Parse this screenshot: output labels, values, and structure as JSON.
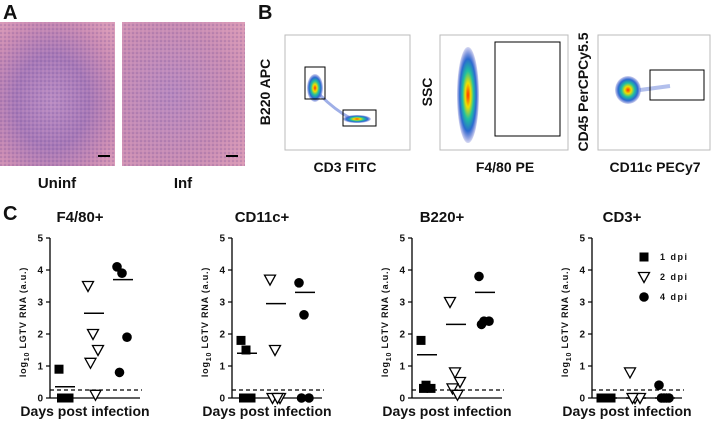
{
  "panel_a": {
    "letter": "A",
    "captions": [
      "Uninf",
      "Inf"
    ]
  },
  "panel_b": {
    "letter": "B",
    "plots": [
      {
        "y_label": "B220 APC",
        "x_label": "CD3 FITC"
      },
      {
        "y_label": "SSC",
        "x_label": "F4/80 PE"
      },
      {
        "y_label": "CD45 PerCPCy5.5",
        "x_label": "CD11c PECy7"
      }
    ]
  },
  "panel_c": {
    "letter": "C"
  },
  "chart_data": [
    {
      "type": "strip",
      "title": "F4/80+",
      "y_label": {
        "base": "log",
        "sub": "10",
        "rest": " LGTV RNA (a.u.)"
      },
      "x_label": "Days post infection",
      "ylim": [
        0,
        5
      ],
      "yticks": [
        0,
        1,
        2,
        3,
        4,
        5
      ],
      "threshold": 0.25,
      "series": [
        {
          "name": "1 dpi",
          "marker": "square",
          "color": "#000000",
          "values": [
            0.9,
            0,
            0,
            0
          ],
          "mean": 0.35
        },
        {
          "name": "2 dpi",
          "marker": "triangle-down",
          "color": "#000000",
          "values": [
            3.5,
            2.0,
            1.5,
            1.1,
            0.1
          ],
          "mean": 2.65
        },
        {
          "name": "4 dpi",
          "marker": "circle",
          "color": "#000000",
          "values": [
            4.1,
            3.9,
            1.9,
            0.8
          ],
          "mean": 3.7
        }
      ]
    },
    {
      "type": "strip",
      "title": "CD11c+",
      "ylim": [
        0,
        5
      ],
      "yticks": [
        0,
        1,
        2,
        3,
        4,
        5
      ],
      "threshold": 0.25,
      "series": [
        {
          "name": "1 dpi",
          "marker": "square",
          "color": "#000000",
          "values": [
            1.8,
            1.5,
            0,
            0
          ],
          "mean": 1.4
        },
        {
          "name": "2 dpi",
          "marker": "triangle-down",
          "color": "#000000",
          "values": [
            3.7,
            1.5,
            0,
            0,
            0
          ],
          "mean": 2.95
        },
        {
          "name": "4 dpi",
          "marker": "circle",
          "color": "#000000",
          "values": [
            3.6,
            2.6,
            0,
            0
          ],
          "mean": 3.3
        }
      ]
    },
    {
      "type": "strip",
      "title": "B220+",
      "ylim": [
        0,
        5
      ],
      "yticks": [
        0,
        1,
        2,
        3,
        4,
        5
      ],
      "threshold": 0.25,
      "series": [
        {
          "name": "1 dpi",
          "marker": "square",
          "color": "#000000",
          "values": [
            1.8,
            0.4,
            0.3,
            0.3
          ],
          "mean": 1.35
        },
        {
          "name": "2 dpi",
          "marker": "triangle-down",
          "color": "#000000",
          "values": [
            3.0,
            0.8,
            0.5,
            0.3,
            0.1
          ],
          "mean": 2.3
        },
        {
          "name": "4 dpi",
          "marker": "circle",
          "color": "#000000",
          "values": [
            3.8,
            2.4,
            2.4,
            2.3
          ],
          "mean": 3.3
        }
      ]
    },
    {
      "type": "strip",
      "title": "CD3+",
      "ylim": [
        0,
        5
      ],
      "yticks": [
        0,
        1,
        2,
        3,
        4,
        5
      ],
      "threshold": 0.25,
      "legend": "upper right",
      "series": [
        {
          "name": "1 dpi",
          "marker": "square",
          "color": "#000000",
          "values": [
            0,
            0,
            0,
            0
          ],
          "mean": 0
        },
        {
          "name": "2 dpi",
          "marker": "triangle-down",
          "color": "#000000",
          "values": [
            0.8,
            0,
            0,
            0
          ],
          "mean": 0
        },
        {
          "name": "4 dpi",
          "marker": "circle",
          "color": "#000000",
          "values": [
            0.4,
            0,
            0,
            0,
            0
          ],
          "mean": 0
        }
      ]
    }
  ]
}
